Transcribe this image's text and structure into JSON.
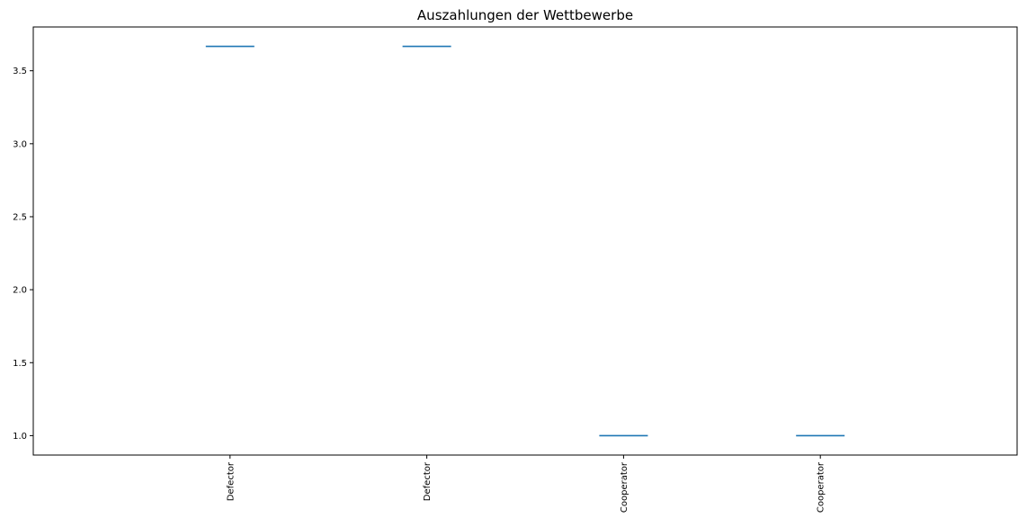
{
  "chart_data": {
    "type": "box",
    "title": "Auszahlungen der Wettbewerbe",
    "xlabel": "",
    "ylabel": "",
    "categories": [
      "Defector",
      "Defector",
      "Cooperator",
      "Cooperator"
    ],
    "values": [
      3.667,
      3.667,
      1.0,
      1.0
    ],
    "ylim": [
      0.867,
      3.8
    ],
    "yticks": [
      1.0,
      1.5,
      2.0,
      2.5,
      3.0,
      3.5
    ],
    "ytick_labels": [
      "1.0",
      "1.5",
      "2.0",
      "2.5",
      "3.0",
      "3.5"
    ],
    "grid": false,
    "series_color": "#1f77b4"
  }
}
